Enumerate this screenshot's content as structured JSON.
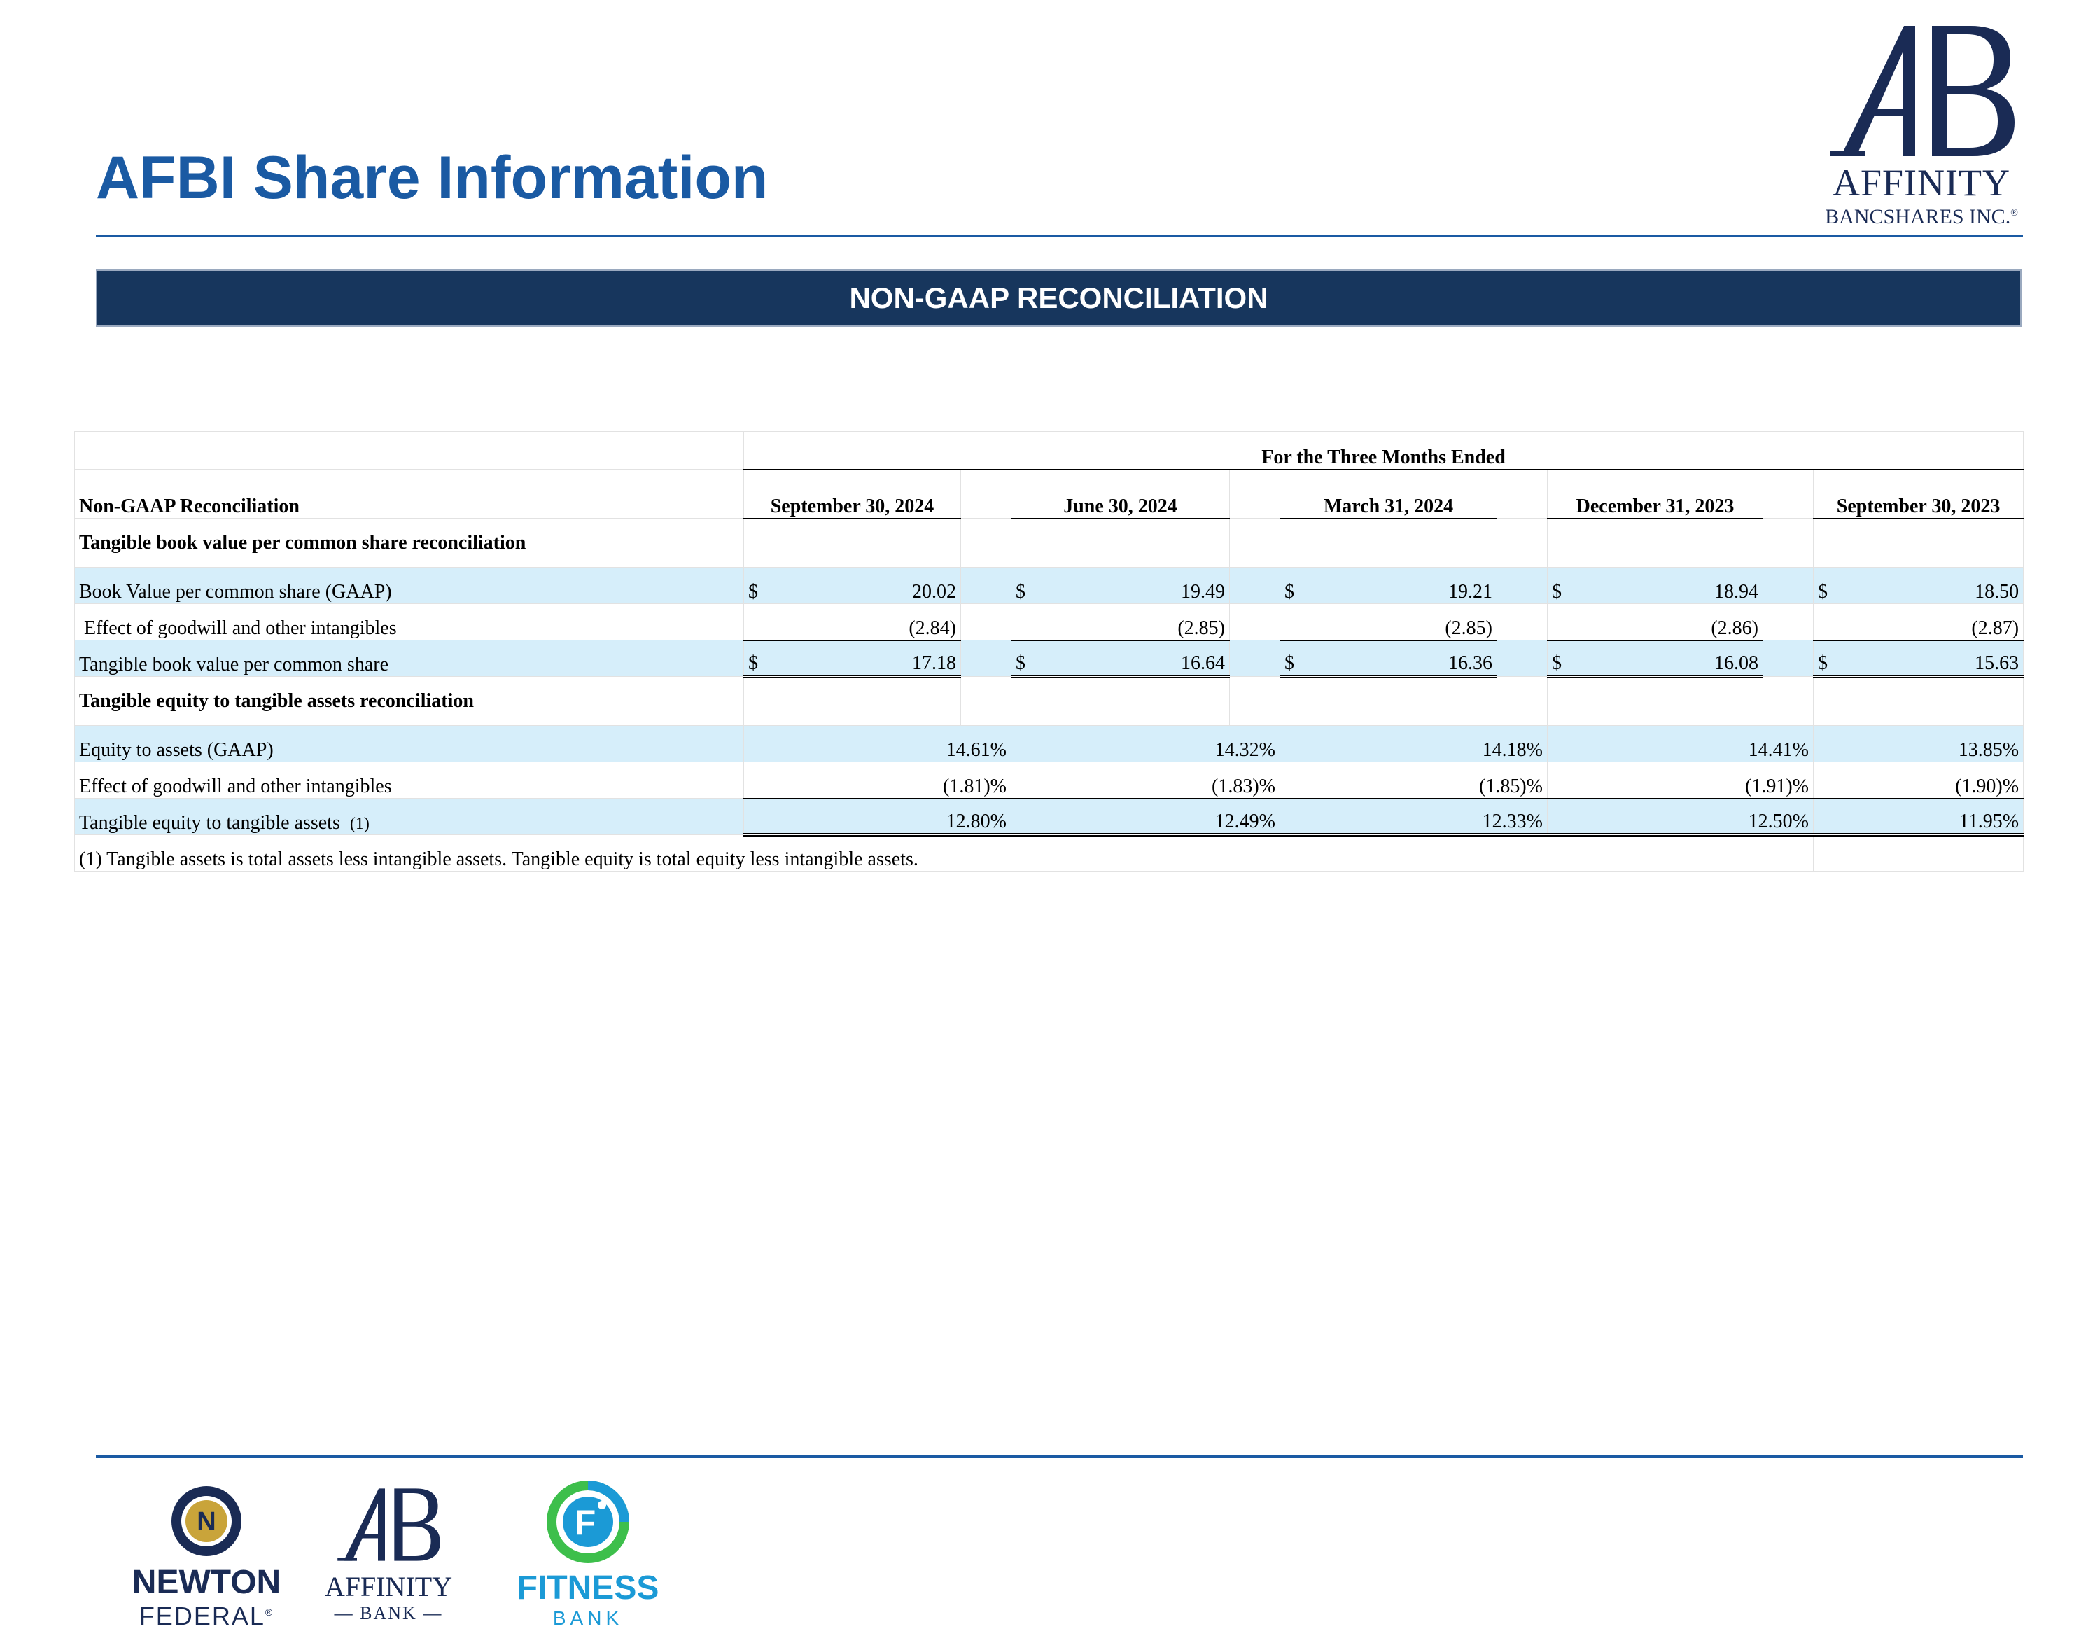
{
  "header": {
    "title": "AFBI Share Information",
    "logo_line1": "AFFINITY",
    "logo_line2": "BANCSHARES INC.",
    "logo_registered": "®"
  },
  "banner": {
    "title": "NON-GAAP RECONCILIATION"
  },
  "table": {
    "period_group_header": "For the Three Months Ended",
    "row_header_label": "Non-GAAP Reconciliation",
    "columns": [
      "September 30, 2024",
      "June 30, 2024",
      "March 31, 2024",
      "December 31, 2023",
      "September 30, 2023"
    ],
    "currency_symbol": "$",
    "sections": [
      {
        "title": "Tangible book value per common share reconciliation",
        "rows": [
          {
            "label": "Book Value per common share (GAAP)",
            "values": [
              "20.02",
              "19.49",
              "19.21",
              "18.94",
              "18.50"
            ]
          },
          {
            "label": " Effect of goodwill and other intangibles",
            "values": [
              "(2.84)",
              "(2.85)",
              "(2.85)",
              "(2.86)",
              "(2.87)"
            ]
          },
          {
            "label": "Tangible book value per common share",
            "values": [
              "17.18",
              "16.64",
              "16.36",
              "16.08",
              "15.63"
            ]
          }
        ]
      },
      {
        "title": "Tangible equity to tangible assets reconciliation",
        "rows": [
          {
            "label": "Equity to assets (GAAP)",
            "values": [
              "14.61%",
              "14.32%",
              "14.18%",
              "14.41%",
              "13.85%"
            ]
          },
          {
            "label": "Effect of goodwill and other intangibles",
            "values": [
              "(1.81)%",
              "(1.83)%",
              "(1.85)%",
              "(1.91)%",
              "(1.90)%"
            ]
          },
          {
            "label": "Tangible equity to tangible assets",
            "footnote_ref": "(1)",
            "values": [
              "12.80%",
              "12.49%",
              "12.33%",
              "12.50%",
              "11.95%"
            ]
          }
        ]
      }
    ],
    "footnote": "(1)  Tangible assets is total assets less intangible assets.  Tangible equity is total equity less intangible assets."
  },
  "footer_logos": {
    "newton": {
      "word": "NEWTON",
      "sub": "FEDERAL",
      "mark": "N",
      "registered": "®"
    },
    "affinity": {
      "word": "AFFINITY",
      "sub": "— BANK —"
    },
    "fitness": {
      "word": "FITNESS",
      "sub": "BANK",
      "mark": "F"
    }
  },
  "colors": {
    "brand_blue": "#1a5aa3",
    "navy": "#17365d",
    "row_shade": "#d6eefa",
    "fitness_blue": "#1b9ad6",
    "fitness_green": "#3dbf4b",
    "newton_gold": "#c9a43a"
  }
}
